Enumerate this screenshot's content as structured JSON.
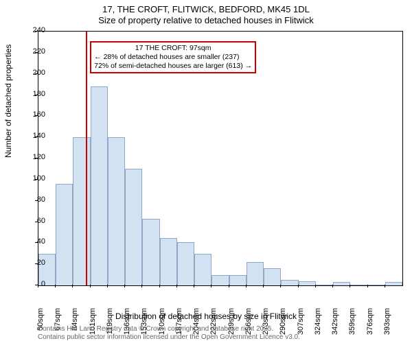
{
  "title": {
    "line1": "17, THE CROFT, FLITWICK, BEDFORD, MK45 1DL",
    "line2": "Size of property relative to detached houses in Flitwick"
  },
  "axes": {
    "ylabel": "Number of detached properties",
    "xlabel": "Distribution of detached houses by size in Flitwick",
    "ylim": [
      0,
      240
    ],
    "yticks": [
      0,
      20,
      40,
      60,
      80,
      100,
      120,
      140,
      160,
      180,
      200,
      220,
      240
    ],
    "xticks": [
      "50sqm",
      "67sqm",
      "84sqm",
      "101sqm",
      "119sqm",
      "136sqm",
      "153sqm",
      "170sqm",
      "187sqm",
      "204sqm",
      "222sqm",
      "239sqm",
      "256sqm",
      "273sqm",
      "290sqm",
      "307sqm",
      "324sqm",
      "342sqm",
      "359sqm",
      "376sqm",
      "393sqm"
    ]
  },
  "histogram": {
    "type": "histogram",
    "values": [
      30,
      96,
      140,
      188,
      140,
      110,
      63,
      45,
      41,
      30,
      10,
      10,
      22,
      16,
      5,
      4,
      0,
      3,
      0,
      0,
      3
    ],
    "bar_fill": "#d2e2f2",
    "bar_border": "#8fa8c8",
    "border_width": 1
  },
  "reference_line": {
    "value": 97,
    "color": "#cc0000"
  },
  "annotation": {
    "lines": [
      "17 THE CROFT: 97sqm",
      "← 28% of detached houses are smaller (237)",
      "72% of semi-detached houses are larger (613) →"
    ],
    "border_color": "#cc0000"
  },
  "attribution": {
    "line1": "Contains HM Land Registry data © Crown copyright and database right 2025.",
    "line2": "Contains public sector information licensed under the Open Government Licence v3.0."
  },
  "colors": {
    "background": "#ffffff",
    "axis": "#000000",
    "text": "#000000",
    "attribution": "#666666"
  }
}
